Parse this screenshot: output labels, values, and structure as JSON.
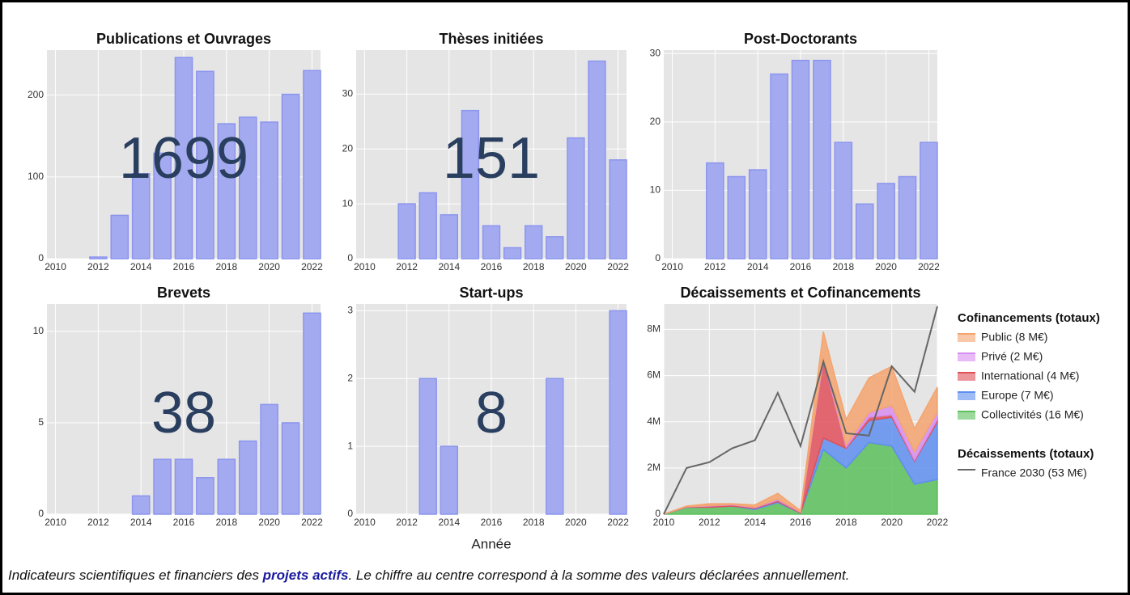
{
  "chart_data": [
    {
      "type": "bar",
      "title": "Publications et Ouvrages",
      "total": 1699,
      "color": "#a3aaf0",
      "x": [
        2010,
        2011,
        2012,
        2013,
        2014,
        2015,
        2016,
        2017,
        2018,
        2019,
        2020,
        2021,
        2022
      ],
      "values": [
        0,
        0,
        2,
        53,
        104,
        129,
        246,
        229,
        165,
        173,
        167,
        201,
        230
      ],
      "xlim": [
        2009.6,
        2022.4
      ],
      "xticks": [
        2010,
        2012,
        2014,
        2016,
        2018,
        2020,
        2022
      ],
      "ylim": [
        0,
        255
      ],
      "yticks": [
        0,
        100,
        200
      ],
      "grid": true
    },
    {
      "type": "bar",
      "title": "Thèses initiées",
      "total": 151,
      "color": "#a3aaf0",
      "x": [
        2010,
        2011,
        2012,
        2013,
        2014,
        2015,
        2016,
        2017,
        2018,
        2019,
        2020,
        2021,
        2022
      ],
      "values": [
        0,
        0,
        10,
        12,
        8,
        27,
        6,
        2,
        6,
        4,
        22,
        36,
        18
      ],
      "xlim": [
        2009.6,
        2022.4
      ],
      "xticks": [
        2010,
        2012,
        2014,
        2016,
        2018,
        2020,
        2022
      ],
      "ylim": [
        0,
        38
      ],
      "yticks": [
        0,
        10,
        20,
        30
      ],
      "grid": true
    },
    {
      "type": "bar",
      "title": "Post-Doctorants",
      "color": "#a3aaf0",
      "x": [
        2010,
        2011,
        2012,
        2013,
        2014,
        2015,
        2016,
        2017,
        2018,
        2019,
        2020,
        2021,
        2022
      ],
      "values": [
        0,
        0,
        14,
        12,
        13,
        27,
        29,
        29,
        17,
        8,
        11,
        12,
        17
      ],
      "xlim": [
        2009.6,
        2022.4
      ],
      "xticks": [
        2010,
        2012,
        2014,
        2016,
        2018,
        2020,
        2022
      ],
      "ylim": [
        0,
        30.5
      ],
      "yticks": [
        0,
        10,
        20,
        30
      ],
      "grid": true
    },
    {
      "type": "bar",
      "title": "Brevets",
      "total": 38,
      "color": "#a3aaf0",
      "x": [
        2010,
        2011,
        2012,
        2013,
        2014,
        2015,
        2016,
        2017,
        2018,
        2019,
        2020,
        2021,
        2022
      ],
      "values": [
        0,
        0,
        0,
        0,
        1,
        3,
        3,
        2,
        3,
        4,
        6,
        5,
        11
      ],
      "xlim": [
        2009.6,
        2022.4
      ],
      "xticks": [
        2010,
        2012,
        2014,
        2016,
        2018,
        2020,
        2022
      ],
      "ylim": [
        0,
        11.5
      ],
      "yticks": [
        0,
        5,
        10
      ],
      "grid": true
    },
    {
      "type": "bar",
      "title": "Start-ups",
      "total": 8,
      "color": "#a3aaf0",
      "x_label": "Année",
      "x": [
        2010,
        2011,
        2012,
        2013,
        2014,
        2015,
        2016,
        2017,
        2018,
        2019,
        2020,
        2021,
        2022
      ],
      "values": [
        0,
        0,
        0,
        2,
        1,
        0,
        0,
        0,
        0,
        2,
        0,
        0,
        3
      ],
      "xlim": [
        2009.6,
        2022.4
      ],
      "xticks": [
        2010,
        2012,
        2014,
        2016,
        2018,
        2020,
        2022
      ],
      "ylim": [
        0,
        3.1
      ],
      "yticks": [
        0,
        1,
        2,
        3
      ],
      "grid": true
    },
    {
      "type": "area",
      "title": "Décaissements et Cofinancements",
      "legend_titles": [
        "Cofinancements (totaux)",
        "Décaissements (totaux)"
      ],
      "x": [
        2010,
        2011,
        2012,
        2013,
        2014,
        2015,
        2016,
        2017,
        2018,
        2019,
        2020,
        2021,
        2022
      ],
      "series": [
        {
          "name": "Collectivités (16 M€)",
          "color": "#5cc05c",
          "kind": "area",
          "values": [
            0,
            300000,
            300000,
            350000,
            200000,
            500000,
            50000,
            2800000,
            2000000,
            3100000,
            2950000,
            1300000,
            1500000
          ]
        },
        {
          "name": "Europe (7 M€)",
          "color": "#5f8ef0",
          "kind": "area",
          "values": [
            0,
            0,
            0,
            0,
            50000,
            50000,
            0,
            500000,
            850000,
            950000,
            1250000,
            1000000,
            2500000
          ]
        },
        {
          "name": "International (4 M€)",
          "color": "#e0505a",
          "kind": "area",
          "values": [
            0,
            20000,
            50000,
            50000,
            30000,
            50000,
            30000,
            3400000,
            50000,
            150000,
            100000,
            50000,
            100000
          ]
        },
        {
          "name": "Privé (2 M€)",
          "color": "#d88ef0",
          "kind": "area",
          "values": [
            0,
            10000,
            20000,
            20000,
            20000,
            50000,
            20000,
            100000,
            100000,
            200000,
            400000,
            350000,
            300000
          ]
        },
        {
          "name": "Public (8 M€)",
          "color": "#f4a46f",
          "kind": "area",
          "values": [
            0,
            20000,
            80000,
            30000,
            100000,
            250000,
            50000,
            1100000,
            1100000,
            1500000,
            1700000,
            1000000,
            1100000
          ]
        },
        {
          "name": "France 2030 (53 M€)",
          "color": "#666666",
          "kind": "line",
          "values": [
            0,
            2000000,
            2250000,
            2850000,
            3200000,
            5250000,
            2950000,
            6600000,
            3500000,
            3400000,
            6400000,
            5300000,
            9000000
          ]
        }
      ],
      "xlim": [
        2010,
        2022
      ],
      "xticks": [
        2010,
        2012,
        2014,
        2016,
        2018,
        2020,
        2022
      ],
      "ylim": [
        0,
        9100000
      ],
      "yticks": [
        0,
        {
          "value": 2000000,
          "label": "2M"
        },
        {
          "value": 4000000,
          "label": "4M"
        },
        {
          "value": 6000000,
          "label": "6M"
        },
        {
          "value": 8000000,
          "label": "8M"
        }
      ],
      "grid": true
    }
  ],
  "caption": {
    "before": "Indicateurs scientifiques et financiers des ",
    "link": "projets actifs",
    "after": ". Le chiffre au centre correspond à la somme des valeurs déclarées annuellement."
  }
}
